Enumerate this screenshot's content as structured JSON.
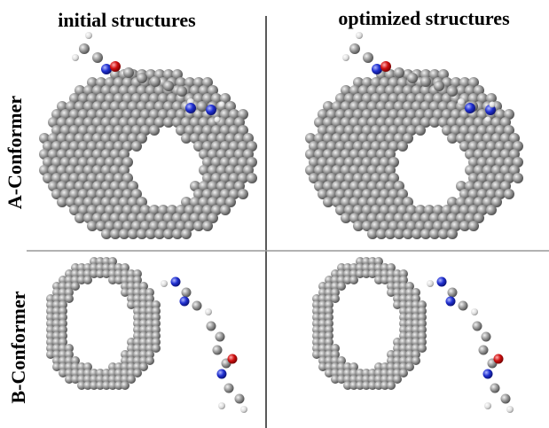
{
  "columns": [
    "initial structures",
    "optimized structures"
  ],
  "rows": [
    "A-Conformer",
    "B-Conformer"
  ]
}
